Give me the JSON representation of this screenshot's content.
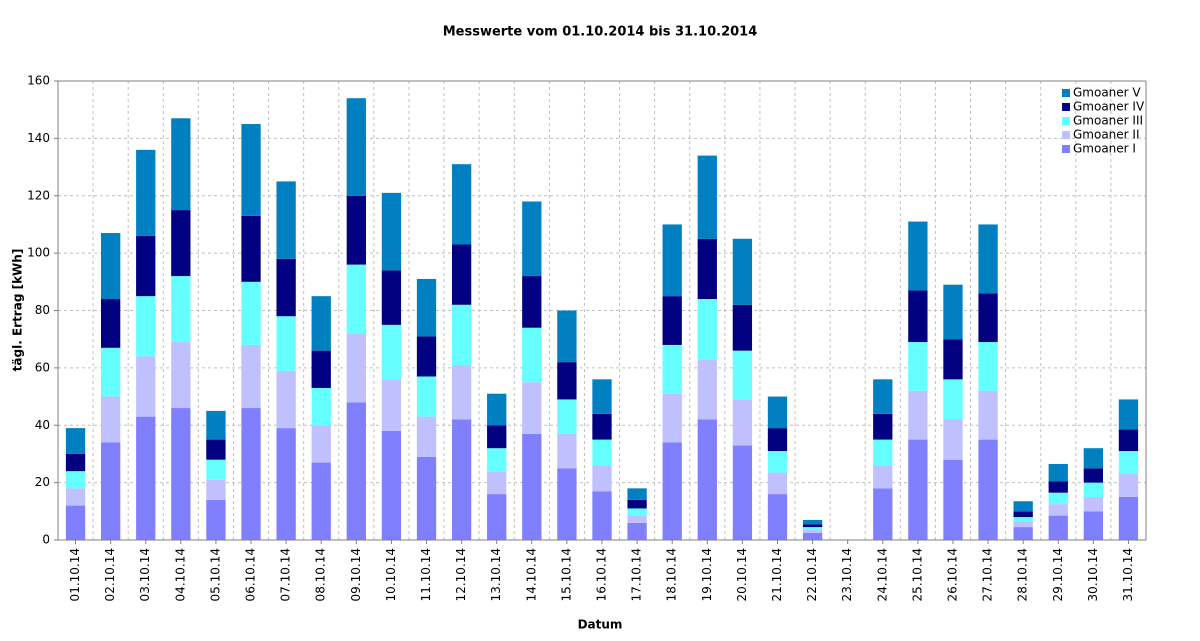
{
  "chart_data": {
    "type": "stacked_bar",
    "title": "Messwerte vom 01.10.2014 bis 31.10.2014",
    "x_label": "Datum",
    "y_label": "tägl. Ertrag [kWh]",
    "categories": [
      "01.10.14",
      "02.10.14",
      "03.10.14",
      "04.10.14",
      "05.10.14",
      "06.10.14",
      "07.10.14",
      "08.10.14",
      "09.10.14",
      "10.10.14",
      "11.10.14",
      "12.10.14",
      "13.10.14",
      "14.10.14",
      "15.10.14",
      "16.10.14",
      "17.10.14",
      "18.10.14",
      "19.10.14",
      "20.10.14",
      "21.10.14",
      "22.10.14",
      "23.10.14",
      "24.10.14",
      "25.10.14",
      "26.10.14",
      "27.10.14",
      "28.10.14",
      "29.10.14",
      "30.10.14",
      "31.10.14"
    ],
    "series": [
      {
        "name": "Gmoaner I",
        "color": "#8080ff",
        "values": [
          12,
          34,
          43,
          46,
          14,
          46,
          39,
          27,
          48,
          38,
          29,
          42,
          16,
          37,
          25,
          17,
          6,
          34,
          42,
          33,
          16,
          2.5,
          0,
          18,
          35,
          28,
          35,
          4.5,
          8.5,
          10,
          15
        ]
      },
      {
        "name": "Gmoaner II",
        "color": "#c0c0ff",
        "values": [
          6,
          16,
          21,
          23,
          7,
          22,
          20,
          13,
          24,
          18,
          14,
          19,
          8,
          18,
          12,
          9,
          2.5,
          17,
          21,
          16,
          7.5,
          1,
          0,
          8,
          17,
          14,
          17,
          2,
          4,
          5,
          8
        ]
      },
      {
        "name": "Gmoaner III",
        "color": "#66ffff",
        "values": [
          6,
          17,
          21,
          23,
          7,
          22,
          19,
          13,
          24,
          19,
          14,
          21,
          8,
          19,
          12,
          9,
          2.5,
          17,
          21,
          17,
          7.5,
          1,
          0,
          9,
          17,
          14,
          17,
          1.5,
          4,
          5,
          8
        ]
      },
      {
        "name": "Gmoaner IV",
        "color": "#000080",
        "values": [
          6,
          17,
          21,
          23,
          7,
          23,
          20,
          13,
          24,
          19,
          14,
          21,
          8,
          18,
          13,
          9,
          3,
          17,
          21,
          16,
          8,
          1,
          0,
          9,
          18,
          14,
          17,
          2,
          4,
          5,
          7.5
        ]
      },
      {
        "name": "Gmoaner V",
        "color": "#0080c0",
        "values": [
          9,
          23,
          30,
          32,
          10,
          32,
          27,
          19,
          34,
          27,
          20,
          28,
          11,
          26,
          18,
          12,
          4,
          25,
          29,
          23,
          11,
          1.5,
          0,
          12,
          24,
          19,
          24,
          3.5,
          6,
          7,
          10.5
        ]
      }
    ],
    "ylim": [
      0,
      160
    ],
    "yticks": [
      0,
      20,
      40,
      60,
      80,
      100,
      120,
      140,
      160
    ],
    "grid": true,
    "legend": "top-right"
  }
}
